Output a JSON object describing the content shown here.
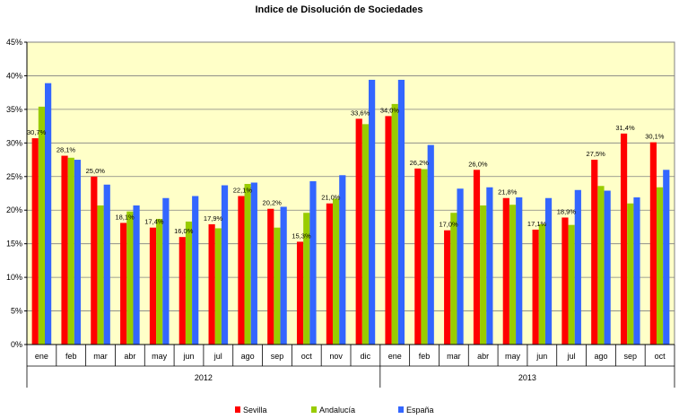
{
  "chart_data": {
    "type": "bar",
    "title": "Indice de Disolución de Sociedades",
    "xlabel": "",
    "ylabel": "",
    "ylim": [
      0,
      45
    ],
    "ytick_labels": [
      "0%",
      "5%",
      "10%",
      "15%",
      "20%",
      "25%",
      "30%",
      "35%",
      "40%",
      "45%"
    ],
    "grid": true,
    "legend_position": "bottom",
    "plot_background": "#FFFFC8",
    "categories": [
      "ene",
      "feb",
      "mar",
      "abr",
      "may",
      "jun",
      "jul",
      "ago",
      "sep",
      "oct",
      "nov",
      "dic",
      "ene",
      "feb",
      "mar",
      "abr",
      "may",
      "jun",
      "jul",
      "ago",
      "sep",
      "oct"
    ],
    "groups": [
      {
        "label": "2012",
        "count": 12
      },
      {
        "label": "2013",
        "count": 10
      }
    ],
    "series": [
      {
        "name": "Sevilla",
        "color": "#FF0000",
        "values": [
          30.7,
          28.1,
          25.0,
          18.1,
          17.4,
          16.0,
          17.9,
          22.1,
          20.2,
          15.3,
          21.0,
          33.6,
          34.0,
          26.2,
          17.0,
          26.0,
          21.8,
          17.1,
          18.9,
          27.5,
          31.4,
          30.1
        ],
        "data_labels": [
          "30,7%",
          "28,1%",
          "25,0%",
          "18,1%",
          "17,4%",
          "16,0%",
          "17,9%",
          "22,1%",
          "20,2%",
          "15,3%",
          "21,0%",
          "33,6%",
          "34,0%",
          "26,2%",
          "17,0%",
          "26,0%",
          "21,8%",
          "17,1%",
          "18,9%",
          "27,5%",
          "31,4%",
          "30,1%"
        ]
      },
      {
        "name": "Andalucía",
        "color": "#99CC00",
        "values": [
          35.4,
          27.8,
          20.7,
          19.8,
          18.7,
          18.3,
          17.3,
          23.9,
          17.4,
          19.6,
          21.7,
          32.8,
          35.8,
          26.1,
          19.6,
          20.7,
          20.8,
          17.9,
          17.8,
          23.6,
          21.0,
          23.4
        ]
      },
      {
        "name": "España",
        "color": "#3366FF",
        "values": [
          38.9,
          27.5,
          23.8,
          20.7,
          21.8,
          22.1,
          23.7,
          24.1,
          20.5,
          24.3,
          25.2,
          39.4,
          39.4,
          29.7,
          23.2,
          23.4,
          21.9,
          21.8,
          23.0,
          22.9,
          21.9,
          26.0
        ]
      }
    ]
  }
}
